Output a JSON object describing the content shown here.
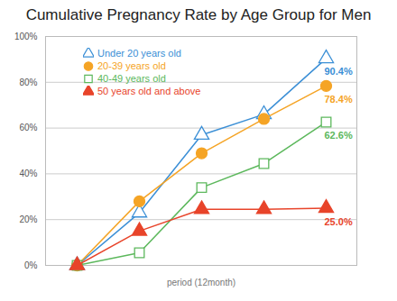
{
  "chart_data": {
    "type": "line",
    "title": "Cumulative Pregnancy Rate by Age Group for Men",
    "x_label": "period (12month)",
    "categories": [
      null,
      null,
      null,
      null,
      null
    ],
    "series": [
      {
        "name": "Under 20 years old",
        "color": "#3b8fd6",
        "marker": "triangle-open",
        "values": [
          0,
          23,
          57,
          66,
          90.4
        ],
        "value_labels": [
          null,
          null,
          null,
          null,
          "90.4%"
        ]
      },
      {
        "name": "20-39 years old",
        "color": "#f5a425",
        "marker": "circle",
        "values": [
          0,
          28,
          49,
          64,
          78.4
        ],
        "value_labels": [
          null,
          null,
          null,
          null,
          "78.4%"
        ]
      },
      {
        "name": "40-49 years old",
        "color": "#5cb85c",
        "marker": "square-open",
        "values": [
          0,
          5.5,
          34,
          44.5,
          62.6
        ],
        "value_labels": [
          null,
          null,
          null,
          null,
          "62.6%"
        ]
      },
      {
        "name": "50 years old and above",
        "color": "#e8442a",
        "marker": "triangle",
        "values": [
          0,
          15,
          24.5,
          24.5,
          25.0
        ],
        "value_labels": [
          null,
          null,
          null,
          null,
          "25.0%"
        ]
      }
    ],
    "ylim": [
      0,
      100
    ],
    "yticks": [
      {
        "value": 0,
        "label": "0%"
      },
      {
        "value": 20,
        "label": "20%"
      },
      {
        "value": 40,
        "label": "40%"
      },
      {
        "value": 60,
        "label": "60%"
      },
      {
        "value": 80,
        "label": "80%"
      },
      {
        "value": 100,
        "label": "100%"
      }
    ],
    "grid": true,
    "legend": "upper left",
    "data_labels": true,
    "tick_labels": "y"
  }
}
